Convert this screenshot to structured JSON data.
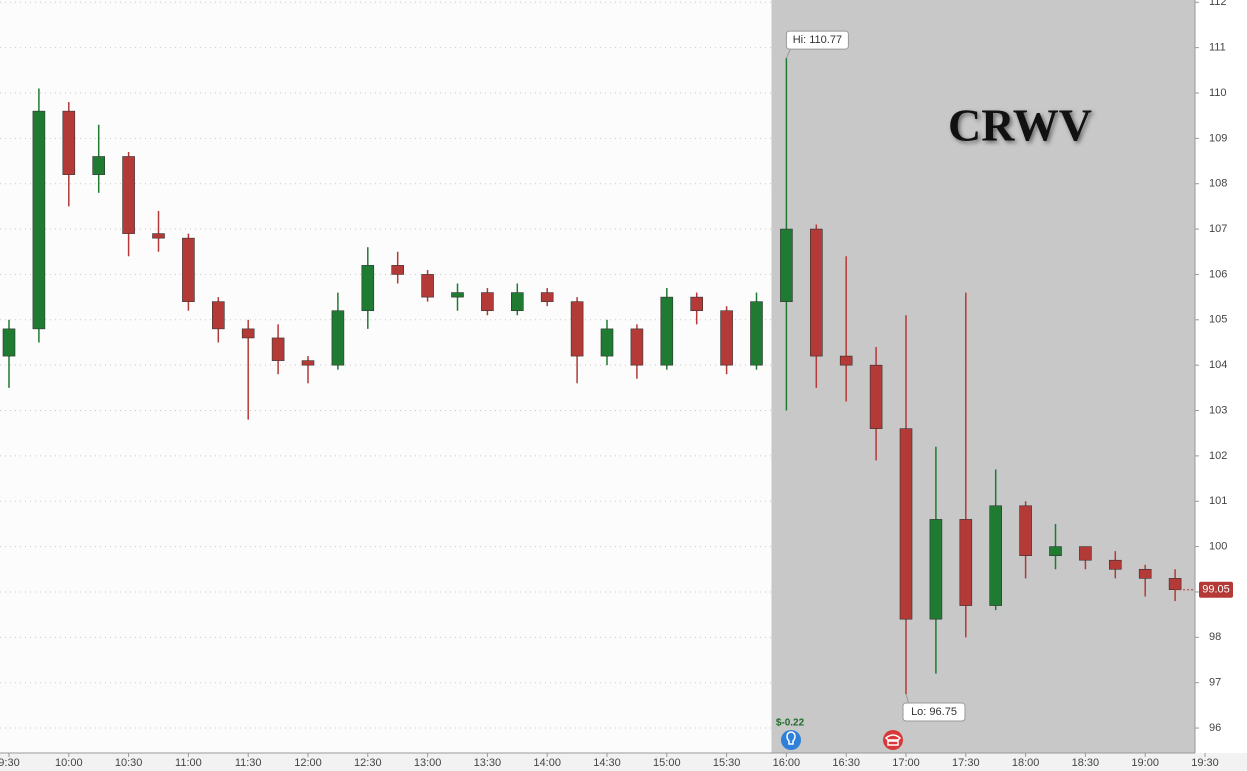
{
  "chart_data": {
    "type": "candlestick",
    "title": "CRWV",
    "categories": [
      "9:30",
      null,
      "10:00",
      null,
      "10:30",
      null,
      "11:00",
      null,
      "11:30",
      null,
      "12:00",
      null,
      "12:30",
      null,
      "13:00",
      null,
      "13:30",
      null,
      "14:00",
      null,
      "14:30",
      null,
      "15:00",
      null,
      "15:30",
      null,
      "16:00",
      null,
      "16:30",
      null,
      "17:00",
      null,
      "17:30",
      null,
      "18:00",
      null,
      "18:30",
      null,
      "19:00",
      null,
      "19:30"
    ],
    "open": [
      104.2,
      104.8,
      109.6,
      108.2,
      108.6,
      106.9,
      106.8,
      105.4,
      104.8,
      104.6,
      104.1,
      104.0,
      105.2,
      106.2,
      106.0,
      105.5,
      105.6,
      105.2,
      105.6,
      105.4,
      104.2,
      104.8,
      104.0,
      105.5,
      105.2,
      104.0,
      105.4,
      107.0,
      104.2,
      104.0,
      102.6,
      98.4,
      100.6,
      98.7,
      100.9,
      99.8,
      100.0,
      99.7,
      99.5,
      99.3,
      null
    ],
    "high": [
      105.0,
      110.1,
      109.8,
      109.3,
      108.7,
      107.4,
      106.9,
      105.5,
      105.0,
      104.9,
      104.2,
      105.6,
      106.6,
      106.5,
      106.1,
      105.8,
      105.7,
      105.8,
      105.7,
      105.5,
      105.0,
      104.9,
      105.7,
      105.6,
      105.3,
      105.6,
      110.77,
      107.1,
      106.4,
      104.4,
      105.1,
      102.2,
      105.6,
      101.7,
      101.0,
      100.5,
      100.0,
      99.9,
      99.6,
      99.5,
      null
    ],
    "low": [
      103.5,
      104.5,
      107.5,
      107.8,
      106.4,
      106.5,
      105.2,
      104.5,
      102.8,
      103.8,
      103.6,
      103.9,
      104.8,
      105.8,
      105.4,
      105.2,
      105.1,
      105.1,
      105.3,
      103.6,
      104.0,
      103.7,
      103.9,
      104.9,
      103.8,
      103.9,
      103.0,
      103.5,
      103.2,
      101.9,
      96.75,
      97.2,
      98.0,
      98.6,
      99.3,
      99.5,
      99.5,
      99.3,
      98.9,
      98.8,
      null
    ],
    "close": [
      104.8,
      109.6,
      108.2,
      108.6,
      106.9,
      106.8,
      105.4,
      104.8,
      104.6,
      104.1,
      104.0,
      105.2,
      106.2,
      106.0,
      105.5,
      105.6,
      105.2,
      105.6,
      105.4,
      104.2,
      104.8,
      104.0,
      105.5,
      105.2,
      104.0,
      105.4,
      107.0,
      104.2,
      104.0,
      102.6,
      98.4,
      100.6,
      98.7,
      100.9,
      99.8,
      100.0,
      99.7,
      99.5,
      99.3,
      99.05,
      null
    ],
    "up_color": "#1f7a32",
    "down_color": "#b33a36",
    "ylim": [
      95.45,
      112.05
    ],
    "yticks": [
      96,
      97,
      98,
      99,
      100,
      101,
      102,
      103,
      104,
      105,
      106,
      107,
      108,
      109,
      110,
      111,
      112
    ],
    "grid": true,
    "shaded_from": "16:00",
    "hi_label": "Hi: 110.77",
    "lo_label": "Lo: 96.75",
    "last_price_label": "99.05",
    "event_label": "$-0.22"
  }
}
